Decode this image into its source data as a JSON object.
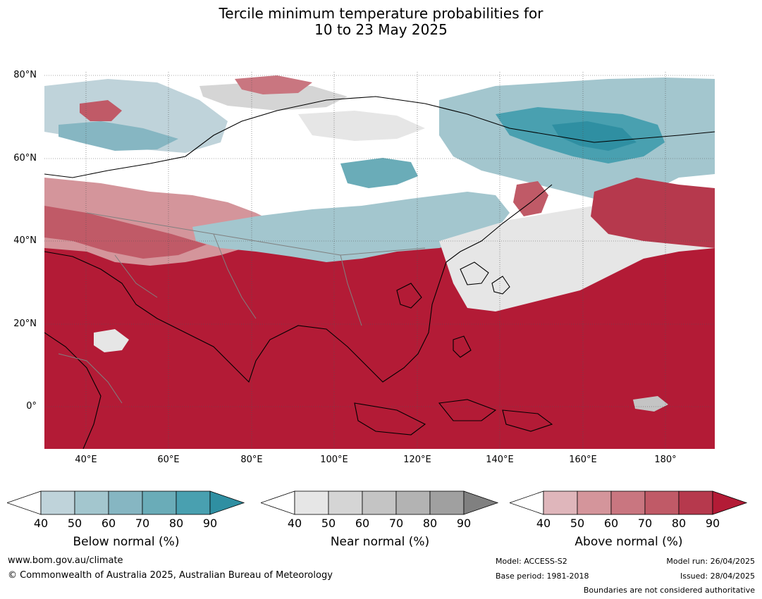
{
  "title_line1": "Tercile minimum temperature probabilities for",
  "title_line2": "10 to 23 May 2025",
  "lat_labels": [
    "80°N",
    "60°N",
    "40°N",
    "20°N",
    "0°"
  ],
  "lon_labels": [
    "40°E",
    "60°E",
    "80°E",
    "100°E",
    "120°E",
    "140°E",
    "160°E",
    "180°"
  ],
  "colorbars": [
    {
      "title": "Below normal (%)",
      "ticks": [
        "40",
        "50",
        "60",
        "70",
        "80",
        "90"
      ],
      "colors": [
        "#bfd3da",
        "#a3c6ce",
        "#86b6c2",
        "#6aacb8",
        "#49a0b0",
        "#2f8fa2"
      ]
    },
    {
      "title": "Near normal (%)",
      "ticks": [
        "40",
        "50",
        "60",
        "70",
        "80",
        "90"
      ],
      "colors": [
        "#e6e6e6",
        "#d5d5d5",
        "#c4c4c4",
        "#b3b3b3",
        "#a0a0a0",
        "#808080"
      ]
    },
    {
      "title": "Above normal (%)",
      "ticks": [
        "40",
        "50",
        "60",
        "70",
        "80",
        "90"
      ],
      "colors": [
        "#dfb6bb",
        "#d4959b",
        "#c97680",
        "#c05a67",
        "#b6394d",
        "#b31b36"
      ]
    }
  ],
  "footer": {
    "website": "www.bom.gov.au/climate",
    "copyright": "© Commonwealth of Australia 2025, Australian Bureau of Meteorology",
    "model": "Model: ACCESS-S2",
    "base_period": "Base period: 1981-2018",
    "model_run": "Model run: 26/04/2025",
    "issued": "Issued: 28/04/2025",
    "disclaimer": "Boundaries are not considered authoritative"
  }
}
